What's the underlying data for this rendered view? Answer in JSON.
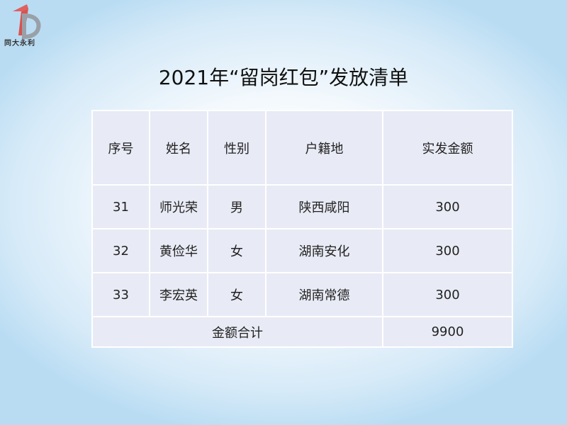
{
  "logo": {
    "text": "同大永利"
  },
  "title": "2021年“留岗红包”发放清单",
  "table": {
    "headers": [
      "序号",
      "姓名",
      "性别",
      "户籍地",
      "实发金额"
    ],
    "rows": [
      [
        "31",
        "师光荣",
        "男",
        "陕西咸阳",
        "300"
      ],
      [
        "32",
        "黄俭华",
        "女",
        "湖南安化",
        "300"
      ],
      [
        "33",
        "李宏英",
        "女",
        "湖南常德",
        "300"
      ]
    ],
    "total_label": "金额合计",
    "total_value": "9900"
  }
}
